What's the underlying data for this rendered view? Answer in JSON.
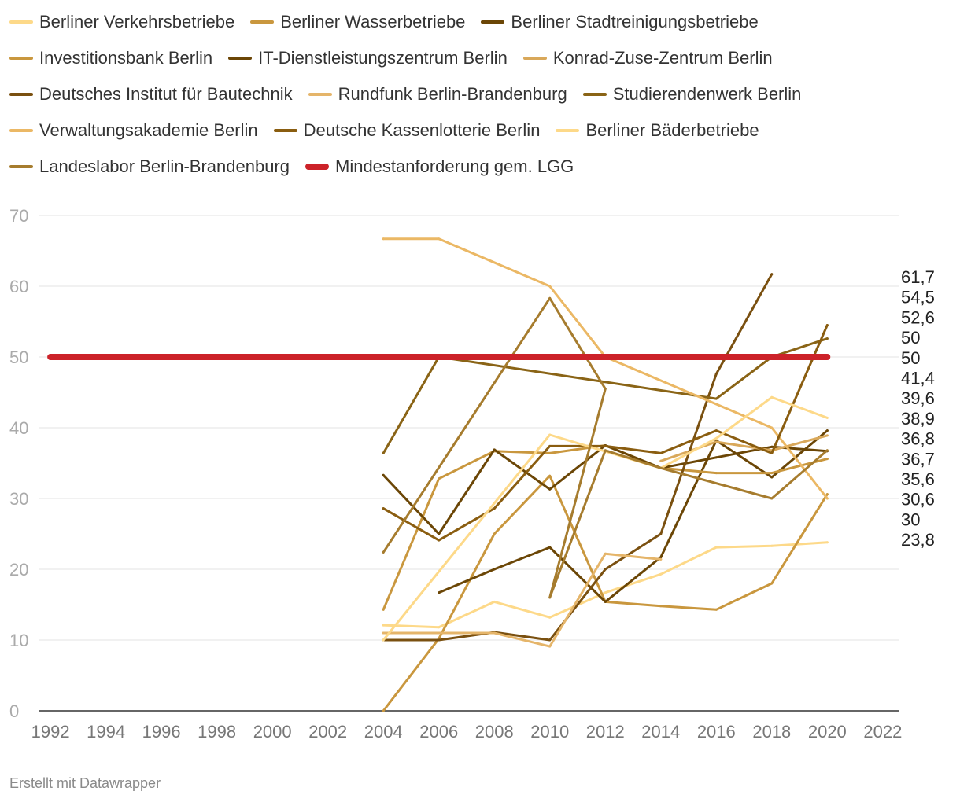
{
  "chart_data": {
    "type": "line",
    "x_ticks": [
      1992,
      1994,
      1996,
      1998,
      2000,
      2002,
      2004,
      2006,
      2008,
      2010,
      2012,
      2014,
      2016,
      2018,
      2020,
      2022
    ],
    "y_ticks": [
      0,
      10,
      20,
      30,
      40,
      50,
      60,
      70
    ],
    "xlim": [
      1991.6,
      2022.6
    ],
    "ylim": [
      0,
      70
    ],
    "grid": true,
    "legend_position": "top",
    "series": [
      {
        "name": "Berliner Verkehrsbetriebe",
        "color": "#fdd989",
        "points": [
          [
            2004,
            12.1
          ],
          [
            2006,
            11.8
          ],
          [
            2008,
            15.4
          ],
          [
            2010,
            13.2
          ],
          [
            2012,
            16.7
          ],
          [
            2014,
            19.3
          ],
          [
            2016,
            23.1
          ],
          [
            2018,
            23.3
          ],
          [
            2020,
            23.8
          ]
        ]
      },
      {
        "name": "Berliner Wasserbetriebe",
        "color": "#c9973e",
        "points": [
          [
            2004,
            0.0
          ],
          [
            2006,
            10.2
          ],
          [
            2008,
            25.0
          ],
          [
            2010,
            33.2
          ],
          [
            2012,
            15.4
          ],
          [
            2014,
            14.8
          ],
          [
            2016,
            14.3
          ],
          [
            2018,
            18.0
          ],
          [
            2020,
            30.6
          ]
        ]
      },
      {
        "name": "Berliner Stadtreinigungsbetriebe",
        "color": "#6b4606",
        "points": [
          [
            2006,
            16.7
          ],
          [
            2008,
            20.0
          ],
          [
            2010,
            23.1
          ],
          [
            2012,
            15.4
          ],
          [
            2014,
            21.7
          ],
          [
            2016,
            38.2
          ],
          [
            2018,
            33.0
          ],
          [
            2020,
            39.6
          ]
        ]
      },
      {
        "name": "Investitionsbank Berlin",
        "color": "#c9973e",
        "points": [
          [
            2004,
            14.3
          ],
          [
            2006,
            32.8
          ],
          [
            2008,
            36.7
          ],
          [
            2010,
            36.4
          ],
          [
            2012,
            37.5
          ],
          [
            2014,
            34.3
          ],
          [
            2016,
            33.6
          ],
          [
            2018,
            33.6
          ],
          [
            2020,
            35.6
          ]
        ]
      },
      {
        "name": "IT-Dienstleistungszentrum Berlin",
        "color": "#6b4606",
        "points": [
          [
            2004,
            33.3
          ],
          [
            2006,
            25.0
          ],
          [
            2008,
            36.9
          ],
          [
            2010,
            31.3
          ],
          [
            2012,
            37.5
          ],
          [
            2014,
            34.3
          ],
          [
            2016,
            35.8
          ],
          [
            2018,
            37.3
          ],
          [
            2020,
            36.7
          ]
        ]
      },
      {
        "name": "Konrad-Zuse-Zentrum Berlin",
        "color": "#d9a85a",
        "points": [
          [
            2014,
            35.3
          ],
          [
            2016,
            38.0
          ],
          [
            2018,
            36.8
          ],
          [
            2020,
            38.9
          ]
        ]
      },
      {
        "name": "Deutsches Institut für Bautechnik",
        "color": "#7a5010",
        "points": [
          [
            2004,
            10.0
          ],
          [
            2006,
            10.0
          ],
          [
            2008,
            11.1
          ],
          [
            2010,
            10.0
          ],
          [
            2012,
            20.0
          ],
          [
            2014,
            25.0
          ],
          [
            2016,
            47.6
          ],
          [
            2018,
            61.7
          ]
        ]
      },
      {
        "name": "Rundfunk Berlin-Brandenburg",
        "color": "#e5b56a",
        "points": [
          [
            2004,
            11.0
          ],
          [
            2006,
            11.0
          ],
          [
            2008,
            11.0
          ],
          [
            2010,
            9.1
          ],
          [
            2012,
            22.2
          ],
          [
            2014,
            21.4
          ]
        ]
      },
      {
        "name": "Studierendenwerk Berlin",
        "color": "#8a6416",
        "points": [
          [
            2004,
            36.4
          ],
          [
            2006,
            50.0
          ],
          [
            2016,
            44.1
          ],
          [
            2018,
            50.0
          ],
          [
            2020,
            52.6
          ]
        ]
      },
      {
        "name": "Verwaltungsakademie Berlin",
        "color": "#ebb865",
        "points": [
          [
            2004,
            66.7
          ],
          [
            2006,
            66.7
          ],
          [
            2010,
            60.0
          ],
          [
            2012,
            50.0
          ],
          [
            2018,
            40.0
          ],
          [
            2020,
            30.0
          ]
        ]
      },
      {
        "name": "Deutsche Kassenlotterie Berlin",
        "color": "#8a5d10",
        "points": [
          [
            2004,
            28.6
          ],
          [
            2006,
            24.1
          ],
          [
            2008,
            28.6
          ],
          [
            2010,
            37.4
          ],
          [
            2012,
            37.4
          ],
          [
            2014,
            36.4
          ],
          [
            2016,
            39.6
          ],
          [
            2018,
            36.4
          ],
          [
            2020,
            54.5
          ]
        ]
      },
      {
        "name": "Berliner Bäderbetriebe",
        "color": "#fdd989",
        "points": [
          [
            2004,
            10.0
          ],
          [
            2010,
            39.0
          ],
          [
            2014,
            34.3
          ],
          [
            2016,
            38.5
          ],
          [
            2018,
            44.3
          ],
          [
            2020,
            41.4
          ]
        ]
      },
      {
        "name": "Landeslabor Berlin-Brandenburg",
        "color": "#a67c2e",
        "points": [
          [
            2004,
            22.4
          ],
          [
            2010,
            58.3
          ],
          [
            2012,
            45.5
          ],
          [
            2010,
            16.0
          ],
          [
            2012,
            36.8
          ],
          [
            2014,
            34.3
          ],
          [
            2018,
            30.0
          ],
          [
            2020,
            36.8
          ]
        ]
      },
      {
        "name": "Mindestanforderung gem. LGG",
        "color": "#cc2229",
        "points": [
          [
            1992,
            50
          ],
          [
            2020,
            50
          ]
        ]
      }
    ],
    "end_labels": [
      "61,7",
      "54,5",
      "52,6",
      "50",
      "50",
      "41,4",
      "39,6",
      "38,9",
      "36,8",
      "36,7",
      "35,6",
      "30,6",
      "30",
      "23,8"
    ]
  },
  "footer": {
    "credit": "Erstellt mit Datawrapper"
  }
}
